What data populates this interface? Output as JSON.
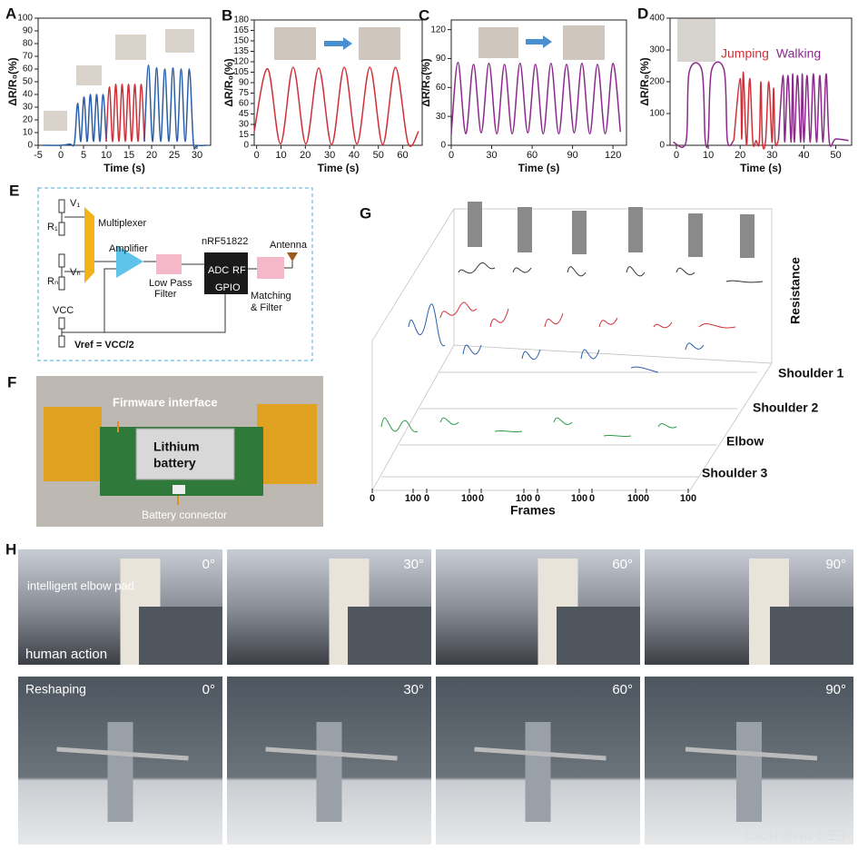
{
  "chart_data": [
    {
      "type": "line",
      "label": "A",
      "xlabel": "Time (s)",
      "ylabel": "ΔR/R₀(%)",
      "xlim": [
        -5,
        33
      ],
      "xticks": [
        -5,
        0,
        5,
        10,
        15,
        20,
        25,
        30
      ],
      "ylim": [
        0,
        100
      ],
      "yticks": [
        0,
        10,
        20,
        30,
        40,
        50,
        60,
        70,
        80,
        90,
        100
      ],
      "series": [
        {
          "color": "#2a5ea8",
          "x": [
            -4,
            0,
            2,
            3,
            3.7,
            4.4,
            5.1,
            5.8,
            6.5,
            7.2,
            7.9,
            8.6,
            9.3,
            10
          ],
          "values": [
            0,
            0,
            1,
            2,
            33,
            3,
            38,
            3,
            40,
            3,
            40,
            3,
            40,
            3
          ]
        },
        {
          "color": "#d0303a",
          "x": [
            10,
            10.7,
            11.4,
            12.1,
            12.8,
            13.5,
            14.2,
            14.9,
            15.6,
            16.3,
            17,
            17.7,
            18.4
          ],
          "values": [
            3,
            46,
            3,
            48,
            3,
            48,
            3,
            48,
            3,
            48,
            3,
            48,
            3
          ]
        },
        {
          "color": "#2a5ea8",
          "x": [
            18.4,
            19.3,
            20.2,
            21.1,
            22,
            22.9,
            23.8,
            24.7,
            25.6,
            26.5,
            27.4,
            28.3,
            29.2,
            30,
            32
          ],
          "values": [
            3,
            63,
            3,
            61,
            3,
            60,
            3,
            61,
            3,
            60,
            3,
            60,
            2,
            0,
            0
          ]
        }
      ]
    },
    {
      "type": "line",
      "label": "B",
      "xlabel": "Time (s)",
      "ylabel": "ΔR/R₀(%)",
      "xlim": [
        -1,
        68
      ],
      "xticks": [
        0,
        10,
        20,
        30,
        40,
        50,
        60
      ],
      "ylim": [
        0,
        180
      ],
      "yticks": [
        0,
        15,
        30,
        45,
        60,
        75,
        90,
        105,
        120,
        135,
        150,
        165,
        180
      ],
      "series": [
        {
          "color": "#d0303a",
          "x": [
            -1,
            4.5,
            9.8,
            15,
            20.2,
            25.5,
            30.8,
            36,
            41.2,
            46.5,
            51.8,
            57,
            62.2,
            66.5
          ],
          "values": [
            20,
            110,
            2,
            112,
            2,
            111,
            1,
            112,
            2,
            112,
            1,
            112,
            3,
            20
          ]
        }
      ]
    },
    {
      "type": "line",
      "label": "C",
      "xlabel": "Time (s)",
      "ylabel": "ΔR/R₀(%)",
      "xlim": [
        0,
        130
      ],
      "xticks": [
        0,
        30,
        60,
        90,
        120
      ],
      "ylim": [
        0,
        130
      ],
      "yticks": [
        0,
        30,
        60,
        90,
        120
      ],
      "series": [
        {
          "color": "#8b2a8b",
          "x": [
            0,
            5,
            10.75,
            16.5,
            22.25,
            28,
            33.75,
            39.5,
            45.25,
            51,
            56.75,
            62.5,
            68.25,
            74,
            79.75,
            85.5,
            91.25,
            97,
            102.75,
            108.5,
            114.25,
            120,
            125.5
          ],
          "values": [
            12,
            86,
            12,
            84,
            13,
            85,
            12,
            84,
            12,
            85,
            13,
            84,
            12,
            85,
            12,
            84,
            13,
            85,
            12,
            84,
            12,
            85,
            14
          ]
        }
      ]
    },
    {
      "type": "line",
      "label": "D",
      "xlabel": "Time (s)",
      "ylabel": "ΔR/R₀(%)",
      "xlim": [
        -2,
        55
      ],
      "xticks": [
        0,
        10,
        20,
        30,
        40,
        50
      ],
      "ylim": [
        0,
        400
      ],
      "yticks": [
        0,
        100,
        200,
        300,
        400
      ],
      "series": [
        {
          "color": "#8b2a8b",
          "x": [
            -1,
            3,
            4,
            8,
            9,
            10,
            11,
            15,
            16,
            18
          ],
          "values": [
            10,
            10,
            230,
            235,
            20,
            20,
            235,
            235,
            15,
            15
          ]
        },
        {
          "name": "Jumping",
          "color": "#d0303a",
          "x": [
            18,
            20,
            20.5,
            21,
            22,
            23,
            24,
            25,
            26,
            26.5,
            27,
            28,
            29,
            30,
            30.5,
            31,
            32
          ],
          "values": [
            15,
            210,
            20,
            230,
            0,
            210,
            10,
            15,
            10,
            200,
            10,
            15,
            200,
            10,
            180,
            10,
            15
          ]
        },
        {
          "name": "Walking",
          "color": "#8b2a8b",
          "x": [
            32,
            33.5,
            34,
            35,
            36,
            36.5,
            37,
            38,
            39,
            39.5,
            40,
            41,
            42,
            43,
            44,
            45,
            46,
            47,
            48,
            50,
            54
          ],
          "values": [
            15,
            220,
            10,
            220,
            10,
            225,
            10,
            220,
            10,
            225,
            10,
            220,
            10,
            225,
            10,
            220,
            10,
            225,
            10,
            20,
            15
          ]
        }
      ]
    }
  ],
  "panel_e": {
    "label": "E",
    "v1": "V₁",
    "vn": "Vₙ",
    "r1": "R₁",
    "rn": "Rₙ",
    "multiplexer": "Multiplexer",
    "amplifier": "Amplifier",
    "chip": "nRF51822",
    "adc": "ADC",
    "rf": "RF",
    "gpio": "GPIO",
    "antenna": "Antenna",
    "low_pass": [
      "Low Pass",
      "Filter"
    ],
    "matching": [
      "Matching",
      "& Filter"
    ],
    "vcc": "VCC",
    "vref": "Vref = VCC/2"
  },
  "panel_f": {
    "label": "F",
    "firmware": "Firmware interface",
    "battery": [
      "Lithium",
      "battery"
    ],
    "connector": "Battery connector"
  },
  "panel_g": {
    "label": "G",
    "zlabel": "Resistance",
    "rows": [
      "Shoulder 1",
      "Shoulder 2",
      "Elbow",
      "Shoulder 3"
    ],
    "xlabel": "Frames",
    "frame_ticks": [
      0,
      100,
      0,
      100,
      0,
      100,
      0,
      100,
      0,
      100,
      0,
      100
    ]
  },
  "panel_h": {
    "label": "H",
    "pad": "intelligent elbow pad",
    "action": "human action",
    "reshaping": "Reshaping",
    "angles": [
      "0°",
      "30°",
      "60°",
      "90°"
    ]
  },
  "watermark": "CSDN @xwz小王子"
}
